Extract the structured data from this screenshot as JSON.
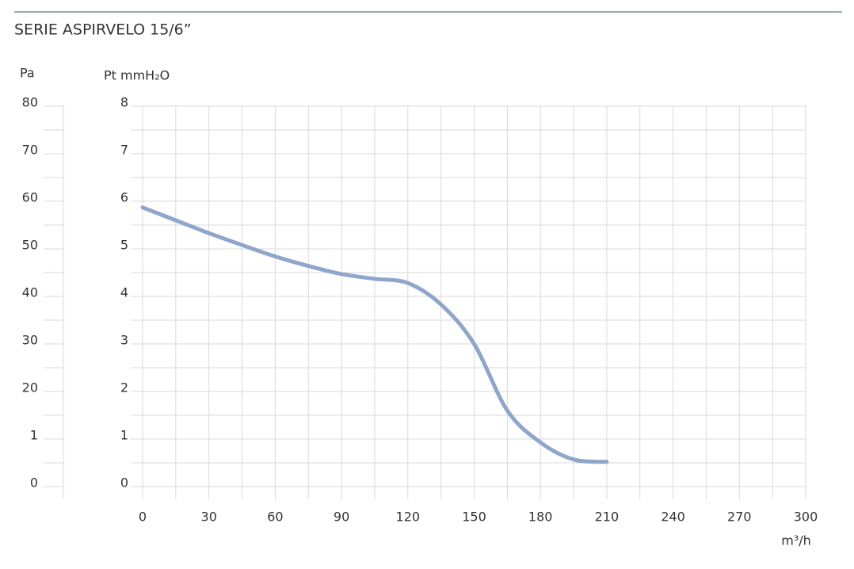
{
  "chart_data": {
    "type": "line",
    "title": "SERIE ASPIRVELO 15/6”",
    "y2_label": "Pa",
    "y_label": "Pt mmH₂O",
    "x_label": "m³/h",
    "x": [
      0,
      15,
      30,
      45,
      60,
      75,
      90,
      105,
      120,
      135,
      150,
      165,
      180,
      195,
      210
    ],
    "series": [
      {
        "name": "ASPIRVELO 15/6",
        "color": "#8fa6cc",
        "values": [
          5.87,
          5.6,
          5.33,
          5.08,
          4.84,
          4.64,
          4.47,
          4.37,
          4.28,
          3.83,
          3.0,
          1.6,
          0.93,
          0.57,
          0.52
        ]
      }
    ],
    "xlim": [
      0,
      300
    ],
    "xticks": [
      0,
      30,
      60,
      90,
      120,
      150,
      180,
      210,
      240,
      270,
      300
    ],
    "x_minor_ticks": [
      15,
      45,
      75,
      105,
      135,
      165,
      195,
      225,
      255,
      285
    ],
    "ylim": [
      0,
      8
    ],
    "yticks": [
      0,
      1,
      2,
      3,
      4,
      5,
      6,
      7,
      8
    ],
    "y_minor_ticks": [
      0.5,
      1.5,
      2.5,
      3.5,
      4.5,
      5.5,
      6.5,
      7.5
    ],
    "y2lim": [
      0,
      80
    ],
    "y2ticks": [
      0,
      {
        "value": 10,
        "label": "1"
      },
      20,
      30,
      40,
      50,
      60,
      70,
      80
    ],
    "grid": true
  }
}
